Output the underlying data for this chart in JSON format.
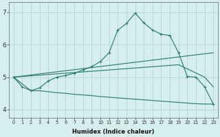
{
  "xlabel": "Humidex (Indice chaleur)",
  "x_ticks": [
    0,
    1,
    2,
    3,
    4,
    5,
    6,
    7,
    8,
    9,
    10,
    11,
    12,
    13,
    14,
    15,
    16,
    17,
    18,
    19,
    20,
    21,
    22,
    23
  ],
  "ylim": [
    3.75,
    7.3
  ],
  "xlim": [
    -0.5,
    23.5
  ],
  "yticks": [
    4,
    5,
    6,
    7
  ],
  "bg_color": "#d6eeed",
  "line_color": "#2e7d6e",
  "grid_color": "#b8d8d5",
  "line1_x": [
    0,
    1,
    2,
    3,
    4,
    5,
    6,
    7,
    8,
    9,
    10,
    11,
    12,
    13,
    14,
    15,
    16,
    17,
    18,
    19,
    20,
    21,
    22,
    23
  ],
  "line1_y": [
    5.0,
    4.7,
    4.58,
    4.67,
    4.88,
    5.0,
    5.05,
    5.12,
    5.22,
    5.32,
    5.48,
    5.75,
    6.45,
    6.65,
    6.97,
    6.67,
    6.45,
    6.32,
    6.28,
    5.75,
    5.02,
    5.0,
    4.7,
    4.17
  ],
  "line2_x": [
    0,
    23
  ],
  "line2_y": [
    5.0,
    5.75
  ],
  "line3_x": [
    0,
    19,
    22,
    23
  ],
  "line3_y": [
    5.0,
    5.38,
    5.0,
    4.7
  ],
  "line4_x": [
    0,
    2,
    3,
    4,
    5,
    6,
    7,
    8,
    9,
    10,
    11,
    12,
    13,
    14,
    15,
    16,
    17,
    18,
    19,
    20,
    21,
    22,
    23
  ],
  "line4_y": [
    5.0,
    4.58,
    4.58,
    4.55,
    4.52,
    4.5,
    4.47,
    4.45,
    4.43,
    4.4,
    4.38,
    4.36,
    4.34,
    4.32,
    4.3,
    4.28,
    4.26,
    4.24,
    4.22,
    4.2,
    4.18,
    4.17,
    4.17
  ]
}
